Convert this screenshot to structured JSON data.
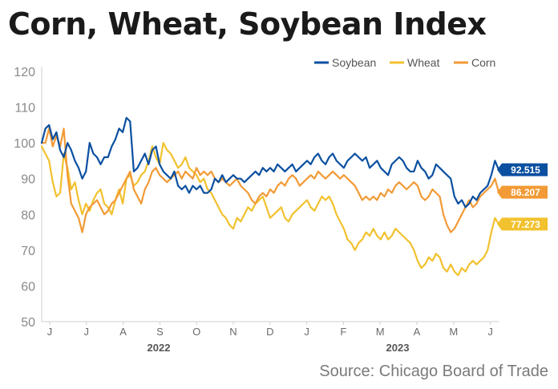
{
  "title": "Corn, Wheat, Soybean Index",
  "source": "Source: Chicago Board of Trade",
  "chart_data": {
    "type": "line",
    "ylim": [
      50,
      120
    ],
    "yticks": [
      50,
      60,
      70,
      80,
      90,
      100,
      110,
      120
    ],
    "month_ticks": [
      "J",
      "J",
      "A",
      "S",
      "O",
      "N",
      "D",
      "J",
      "F",
      "M",
      "A",
      "M",
      "J"
    ],
    "years": [
      "2022",
      "2023"
    ],
    "grid": false,
    "legend_position": "top-right",
    "series": [
      {
        "name": "Soybean",
        "color": "#0a4fa0",
        "end_label": "92.515",
        "values": [
          100,
          104,
          105,
          101,
          103,
          98,
          96,
          100,
          98,
          95,
          93,
          90,
          92,
          100,
          97,
          96,
          94,
          96,
          96,
          99,
          101,
          104,
          103,
          107,
          106,
          92,
          93,
          95,
          97,
          94,
          98,
          99,
          94,
          92,
          91,
          90,
          92,
          88,
          87,
          88,
          86,
          88,
          87,
          88,
          86,
          86,
          87,
          90,
          89,
          91,
          89,
          90,
          91,
          90,
          90,
          89,
          90,
          91,
          92,
          91,
          93,
          92,
          93,
          92,
          94,
          93,
          92,
          93,
          94,
          92,
          93,
          94,
          95,
          94,
          96,
          97,
          95,
          94,
          96,
          97,
          95,
          94,
          93,
          95,
          96,
          97,
          96,
          95,
          96,
          93,
          94,
          95,
          93,
          92,
          91,
          94,
          95,
          96,
          95,
          93,
          92,
          92,
          95,
          93,
          92,
          90,
          91,
          94,
          93,
          92,
          91,
          90,
          85,
          83,
          84,
          82,
          83,
          85,
          84,
          86,
          87,
          88,
          91,
          95,
          92.5
        ]
      },
      {
        "name": "Wheat",
        "color": "#f2c12e",
        "end_label": "77.273",
        "values": [
          99,
          97,
          95,
          89,
          85,
          86,
          97,
          93,
          87,
          89,
          84,
          80,
          83,
          81,
          84,
          86,
          87,
          83,
          82,
          80,
          84,
          87,
          83,
          90,
          91,
          88,
          89,
          91,
          92,
          95,
          99,
          96,
          94,
          100,
          98,
          97,
          95,
          93,
          94,
          96,
          93,
          92,
          91,
          89,
          90,
          87,
          86,
          84,
          82,
          80,
          79,
          77,
          76,
          79,
          78,
          80,
          82,
          81,
          83,
          84,
          85,
          82,
          79,
          80,
          81,
          82,
          79,
          78,
          80,
          81,
          82,
          83,
          84,
          82,
          81,
          83,
          85,
          84,
          85,
          83,
          80,
          78,
          76,
          73,
          72,
          70,
          72,
          73,
          75,
          74,
          76,
          74,
          73,
          75,
          73,
          74,
          76,
          75,
          74,
          73,
          72,
          70,
          67,
          65,
          66,
          68,
          67,
          69,
          68,
          65,
          64,
          66,
          64,
          63,
          65,
          64,
          66,
          67,
          66,
          67,
          68,
          70,
          75,
          79,
          77.3
        ]
      },
      {
        "name": "Corn",
        "color": "#f29a36",
        "end_label": "86.207",
        "values": [
          100,
          100,
          104,
          99,
          102,
          99,
          104,
          91,
          83,
          81,
          79,
          75,
          80,
          82,
          83,
          84,
          82,
          80,
          81,
          83,
          84,
          86,
          88,
          90,
          92,
          87,
          85,
          83,
          87,
          89,
          92,
          93,
          91,
          90,
          89,
          90,
          91,
          92,
          90,
          92,
          91,
          90,
          93,
          91,
          92,
          91,
          92,
          90,
          89,
          90,
          89,
          88,
          89,
          90,
          88,
          87,
          86,
          84,
          83,
          85,
          86,
          85,
          87,
          86,
          88,
          89,
          88,
          90,
          91,
          90,
          88,
          89,
          90,
          91,
          90,
          92,
          91,
          90,
          91,
          92,
          91,
          90,
          91,
          90,
          89,
          88,
          86,
          84,
          85,
          84,
          85,
          84,
          86,
          85,
          87,
          86,
          88,
          89,
          88,
          87,
          88,
          89,
          88,
          85,
          84,
          85,
          87,
          86,
          85,
          80,
          77,
          75,
          76,
          78,
          80,
          82,
          84,
          82,
          83,
          85,
          86,
          87,
          88,
          90,
          86.2
        ]
      }
    ]
  }
}
